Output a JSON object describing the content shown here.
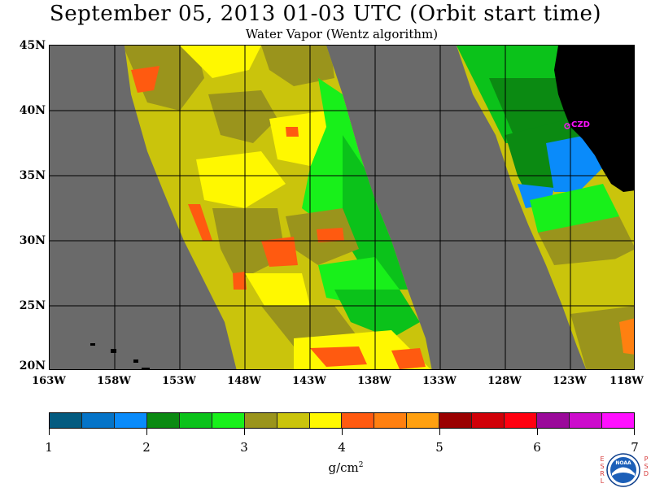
{
  "header": {
    "title": "September 05, 2013  01-03 UTC  (Orbit start time)",
    "subtitle": "Water Vapor (Wentz algorithm)"
  },
  "map": {
    "latitude_labels": [
      "45N",
      "40N",
      "35N",
      "30N",
      "25N",
      "20N"
    ],
    "longitude_labels": [
      "163W",
      "158W",
      "153W",
      "148W",
      "143W",
      "138W",
      "133W",
      "128W",
      "123W",
      "118W"
    ],
    "station_marker": "CZD",
    "no_data_color": "#6a6a6a",
    "land_color": "#000000",
    "grid_color": "#000000"
  },
  "colorbar": {
    "tick_labels": [
      "1",
      "2",
      "3",
      "4",
      "5",
      "6",
      "7"
    ],
    "units": "g/cm",
    "units_superscript": "2",
    "colors": [
      "#035b80",
      "#0574c8",
      "#0a8bfa",
      "#0b8a12",
      "#0bc21a",
      "#18f01a",
      "#9a941c",
      "#cac40c",
      "#fff800",
      "#ff5a10",
      "#ff8010",
      "#ffa010",
      "#9a0000",
      "#d00008",
      "#ff0010",
      "#9a0a9a",
      "#cc0ccc",
      "#ff10ff"
    ]
  },
  "logo": {
    "left_letters": "E S R L",
    "right_letters": "P S D",
    "center_text": "NOAA"
  }
}
